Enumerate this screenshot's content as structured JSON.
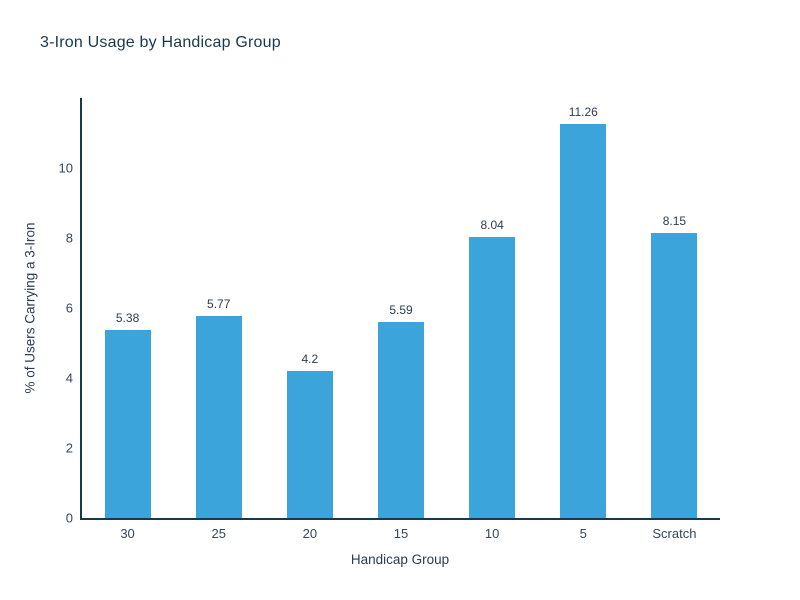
{
  "chart_data": {
    "type": "bar",
    "title": "3-Iron Usage by Handicap Group",
    "xlabel": "Handicap Group",
    "ylabel": "% of Users Carrying a 3-Iron",
    "categories": [
      "30",
      "25",
      "20",
      "15",
      "10",
      "5",
      "Scratch"
    ],
    "values": [
      5.38,
      5.77,
      4.2,
      5.59,
      8.04,
      11.26,
      8.15
    ],
    "value_labels": [
      "5.38",
      "5.77",
      "4.2",
      "5.59",
      "8.04",
      "11.26",
      "8.15"
    ],
    "yticks": [
      0,
      2,
      4,
      6,
      8,
      10
    ],
    "ylim": [
      0,
      12
    ],
    "grid": false,
    "legend_position": "none",
    "bar_color": "#3aa4db",
    "axis_color": "#16394e",
    "title_color": "#16394e",
    "tick_label_color": "#33475a"
  }
}
